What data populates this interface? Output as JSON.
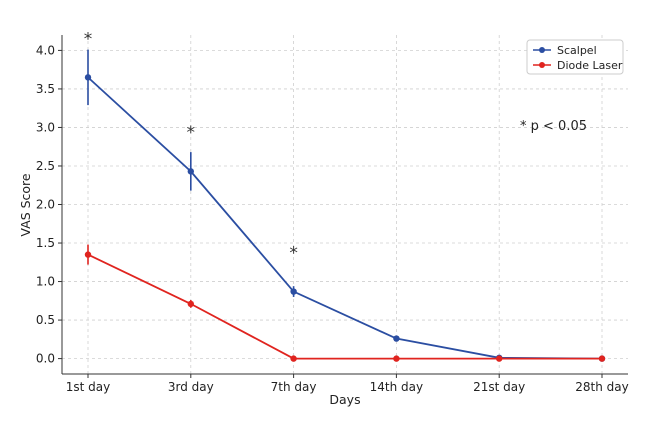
{
  "chart_data": {
    "type": "line",
    "title": "",
    "xlabel": "Days",
    "ylabel": "VAS Score",
    "categories": [
      "1st day",
      "3rd day",
      "7th day",
      "14th day",
      "21st day",
      "28th day"
    ],
    "ylim": [
      -0.2,
      4.2
    ],
    "yticks": [
      "0.0",
      "0.5",
      "1.0",
      "1.5",
      "2.0",
      "2.5",
      "3.0",
      "3.5",
      "4.0"
    ],
    "grid": true,
    "legend_position": "top-right",
    "series": [
      {
        "name": "Scalpel",
        "color": "#2b4ea2",
        "values": [
          3.65,
          2.43,
          0.87,
          0.26,
          0.01,
          0.0
        ],
        "errors": [
          0.36,
          0.25,
          0.07,
          0.0,
          0.0,
          0.0
        ]
      },
      {
        "name": "Diode Laser",
        "color": "#e0241f",
        "values": [
          1.35,
          0.71,
          0.0,
          0.0,
          0.0,
          0.0
        ],
        "errors": [
          0.13,
          0.05,
          0.0,
          0.0,
          0.0,
          0.0
        ]
      }
    ],
    "significance_markers": [
      {
        "category": "1st day",
        "label": "*",
        "value": 4.18
      },
      {
        "category": "3rd day",
        "label": "*",
        "value": 2.97
      },
      {
        "category": "7th day",
        "label": "*",
        "value": 1.4
      }
    ],
    "annotation": "* p < 0.05"
  }
}
